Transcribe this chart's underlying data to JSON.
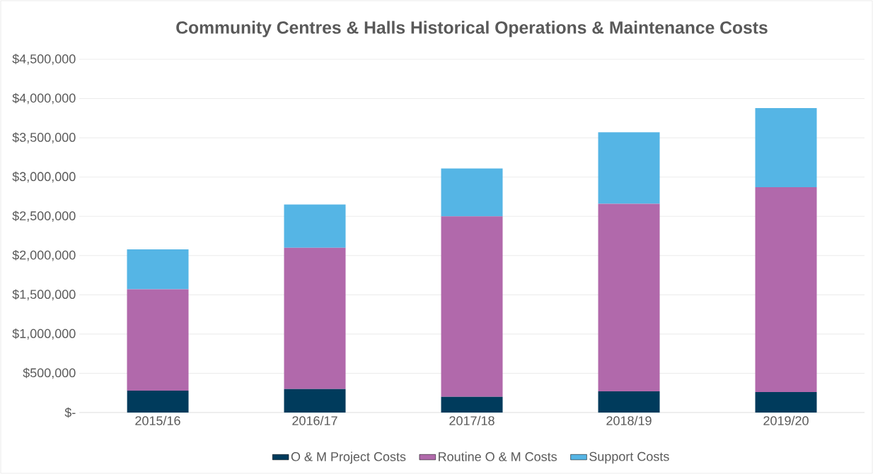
{
  "chart_data": {
    "type": "bar",
    "title": "Community Centres & Halls Historical Operations & Maintenance Costs",
    "categories": [
      "2015/16",
      "2016/17",
      "2017/18",
      "2018/19",
      "2019/20"
    ],
    "stacked": true,
    "series": [
      {
        "name": "O & M Project Costs",
        "color": "#003b5c",
        "values": [
          280000,
          300000,
          200000,
          270000,
          260000
        ]
      },
      {
        "name": "Routine O & M Costs",
        "color": "#b169ab",
        "values": [
          1290000,
          1800000,
          2300000,
          2390000,
          2610000
        ]
      },
      {
        "name": "Support Costs",
        "color": "#55b5e5",
        "values": [
          510000,
          550000,
          610000,
          910000,
          1010000
        ]
      }
    ],
    "ylim": [
      0,
      4500000
    ],
    "yticks": [
      {
        "value": 0,
        "label": "$-"
      },
      {
        "value": 500000,
        "label": "$500,000"
      },
      {
        "value": 1000000,
        "label": "$1,000,000"
      },
      {
        "value": 1500000,
        "label": "$1,500,000"
      },
      {
        "value": 2000000,
        "label": "$2,000,000"
      },
      {
        "value": 2500000,
        "label": "$2,500,000"
      },
      {
        "value": 3000000,
        "label": "$3,000,000"
      },
      {
        "value": 3500000,
        "label": "$3,500,000"
      },
      {
        "value": 4000000,
        "label": "$4,000,000"
      },
      {
        "value": 4500000,
        "label": "$4,500,000"
      }
    ],
    "grid": "y",
    "legend": "bottom"
  }
}
